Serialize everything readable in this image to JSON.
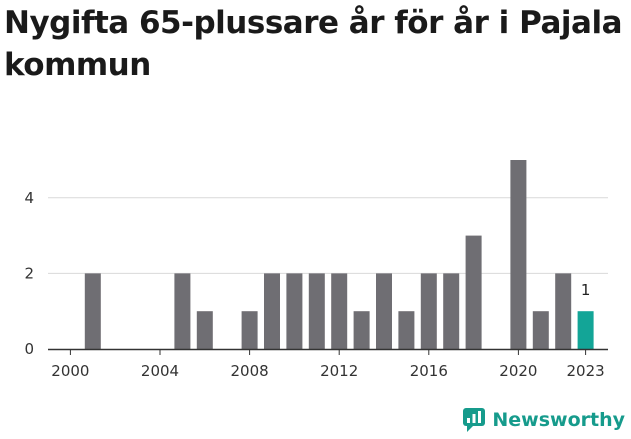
{
  "title": "Nygifta 65-plussare år för år i Pajala kommun",
  "brand": {
    "name": "Newsworthy",
    "color": "#169b8c"
  },
  "colors": {
    "bar": "#6f6e73",
    "highlight": "#13a597",
    "grid": "#d9d9d9",
    "axis": "#333333"
  },
  "chart_data": {
    "type": "bar",
    "title": "Nygifta 65-plussare år för år i Pajala kommun",
    "xlabel": "",
    "ylabel": "",
    "x_range": [
      1999,
      2024
    ],
    "ylim": [
      0,
      5
    ],
    "y_ticks": [
      0,
      2,
      4
    ],
    "x_ticks": [
      2000,
      2004,
      2008,
      2012,
      2016,
      2020,
      2023
    ],
    "highlight_year": 2023,
    "data_labels": [
      {
        "year": 2023,
        "text": "1"
      }
    ],
    "series": [
      {
        "name": "Nygifta 65-plussare",
        "data": [
          {
            "year": 2000,
            "value": 0
          },
          {
            "year": 2001,
            "value": 2
          },
          {
            "year": 2002,
            "value": 0
          },
          {
            "year": 2003,
            "value": 0
          },
          {
            "year": 2004,
            "value": 0
          },
          {
            "year": 2005,
            "value": 2
          },
          {
            "year": 2006,
            "value": 1
          },
          {
            "year": 2007,
            "value": 0
          },
          {
            "year": 2008,
            "value": 1
          },
          {
            "year": 2009,
            "value": 2
          },
          {
            "year": 2010,
            "value": 2
          },
          {
            "year": 2011,
            "value": 2
          },
          {
            "year": 2012,
            "value": 2
          },
          {
            "year": 2013,
            "value": 1
          },
          {
            "year": 2014,
            "value": 2
          },
          {
            "year": 2015,
            "value": 1
          },
          {
            "year": 2016,
            "value": 2
          },
          {
            "year": 2017,
            "value": 2
          },
          {
            "year": 2018,
            "value": 3
          },
          {
            "year": 2019,
            "value": 0
          },
          {
            "year": 2020,
            "value": 5
          },
          {
            "year": 2021,
            "value": 1
          },
          {
            "year": 2022,
            "value": 2
          },
          {
            "year": 2023,
            "value": 1
          }
        ]
      }
    ]
  }
}
